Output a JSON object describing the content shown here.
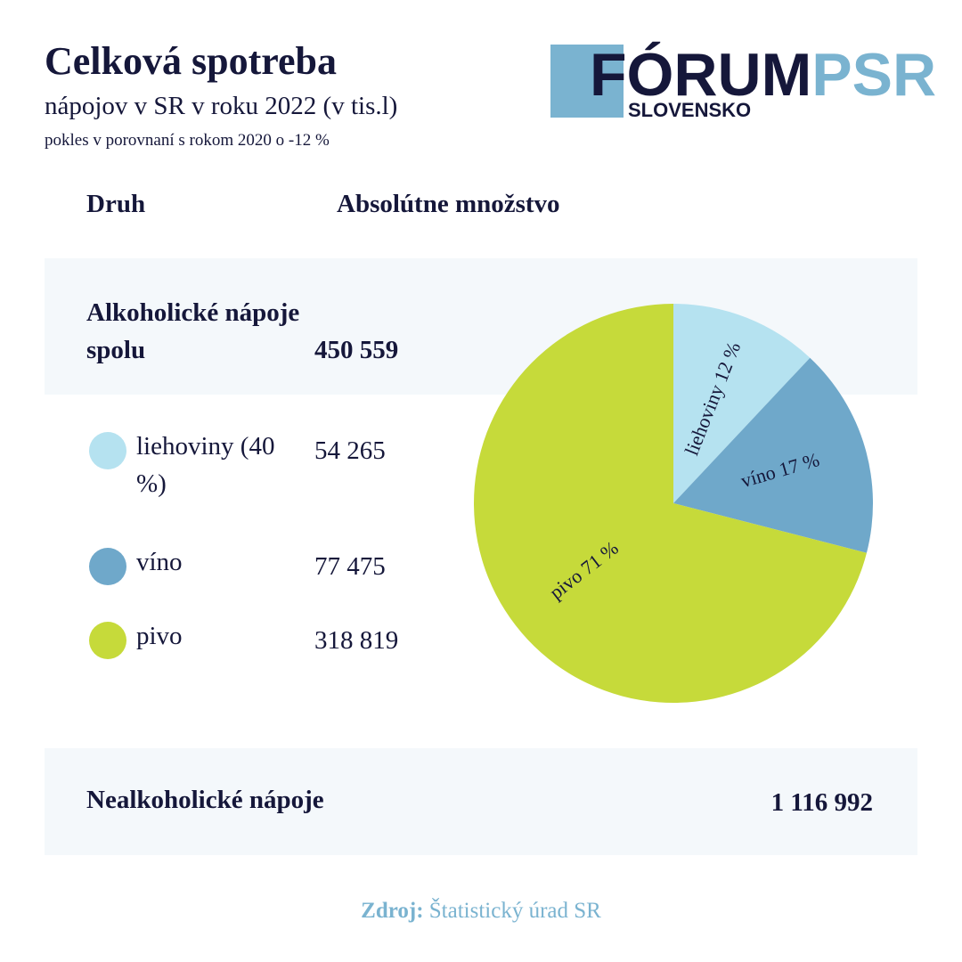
{
  "header": {
    "title": "Celková spotreba",
    "subtitle": "nápojov v SR v roku 2022 (v tis.l)",
    "note": "pokles v porovnaní s rokom 2020 o -12 %"
  },
  "logo": {
    "main": "FÓRUM",
    "accent": "PSR",
    "sub": "SLOVENSKO"
  },
  "table": {
    "headers": [
      "Druh",
      "Absolútne množstvo"
    ],
    "total": {
      "label": "Alkoholické nápoje spolu",
      "value": "450 559"
    },
    "rows": [
      {
        "label": "liehoviny (40 %)",
        "value": "54 265"
      },
      {
        "label": "víno",
        "value": "77 475"
      },
      {
        "label": "pivo",
        "value": "318 819"
      }
    ],
    "nonalcoholic": {
      "label": "Nealkoholické nápoje",
      "value": "1 116 992"
    }
  },
  "source": {
    "label": "Zdroj:",
    "text": "Štatistický úrad SR"
  },
  "chart_data": {
    "type": "pie",
    "values": [
      12,
      17,
      71
    ],
    "value_labels": [
      "liehoviny 12 %",
      "víno 17 %",
      "pivo 71 %"
    ],
    "colors": [
      "#b5e2f0",
      "#6fa8ca",
      "#c6da3a"
    ]
  }
}
